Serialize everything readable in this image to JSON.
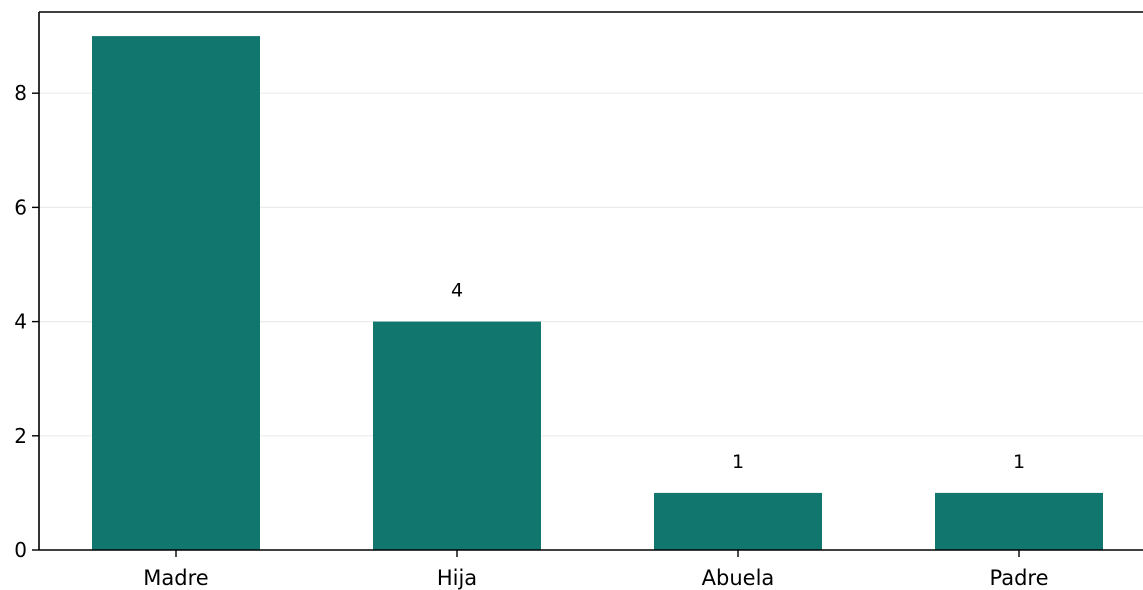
{
  "chart_data": {
    "type": "bar",
    "title": "",
    "xlabel": "",
    "ylabel": "",
    "categories": [
      "Madre",
      "Hija",
      "Abuela",
      "Padre"
    ],
    "values": [
      9,
      4,
      1,
      1
    ],
    "data_labels": [
      "",
      "4",
      "1",
      "1"
    ],
    "ylim": [
      0,
      9.3
    ],
    "yticks": [
      0,
      2,
      4,
      6,
      8
    ],
    "ytick_labels": [
      "0",
      "2",
      "4",
      "6",
      "8"
    ],
    "bar_color": "#11766d",
    "grid": "horizontal",
    "legend": "none"
  }
}
